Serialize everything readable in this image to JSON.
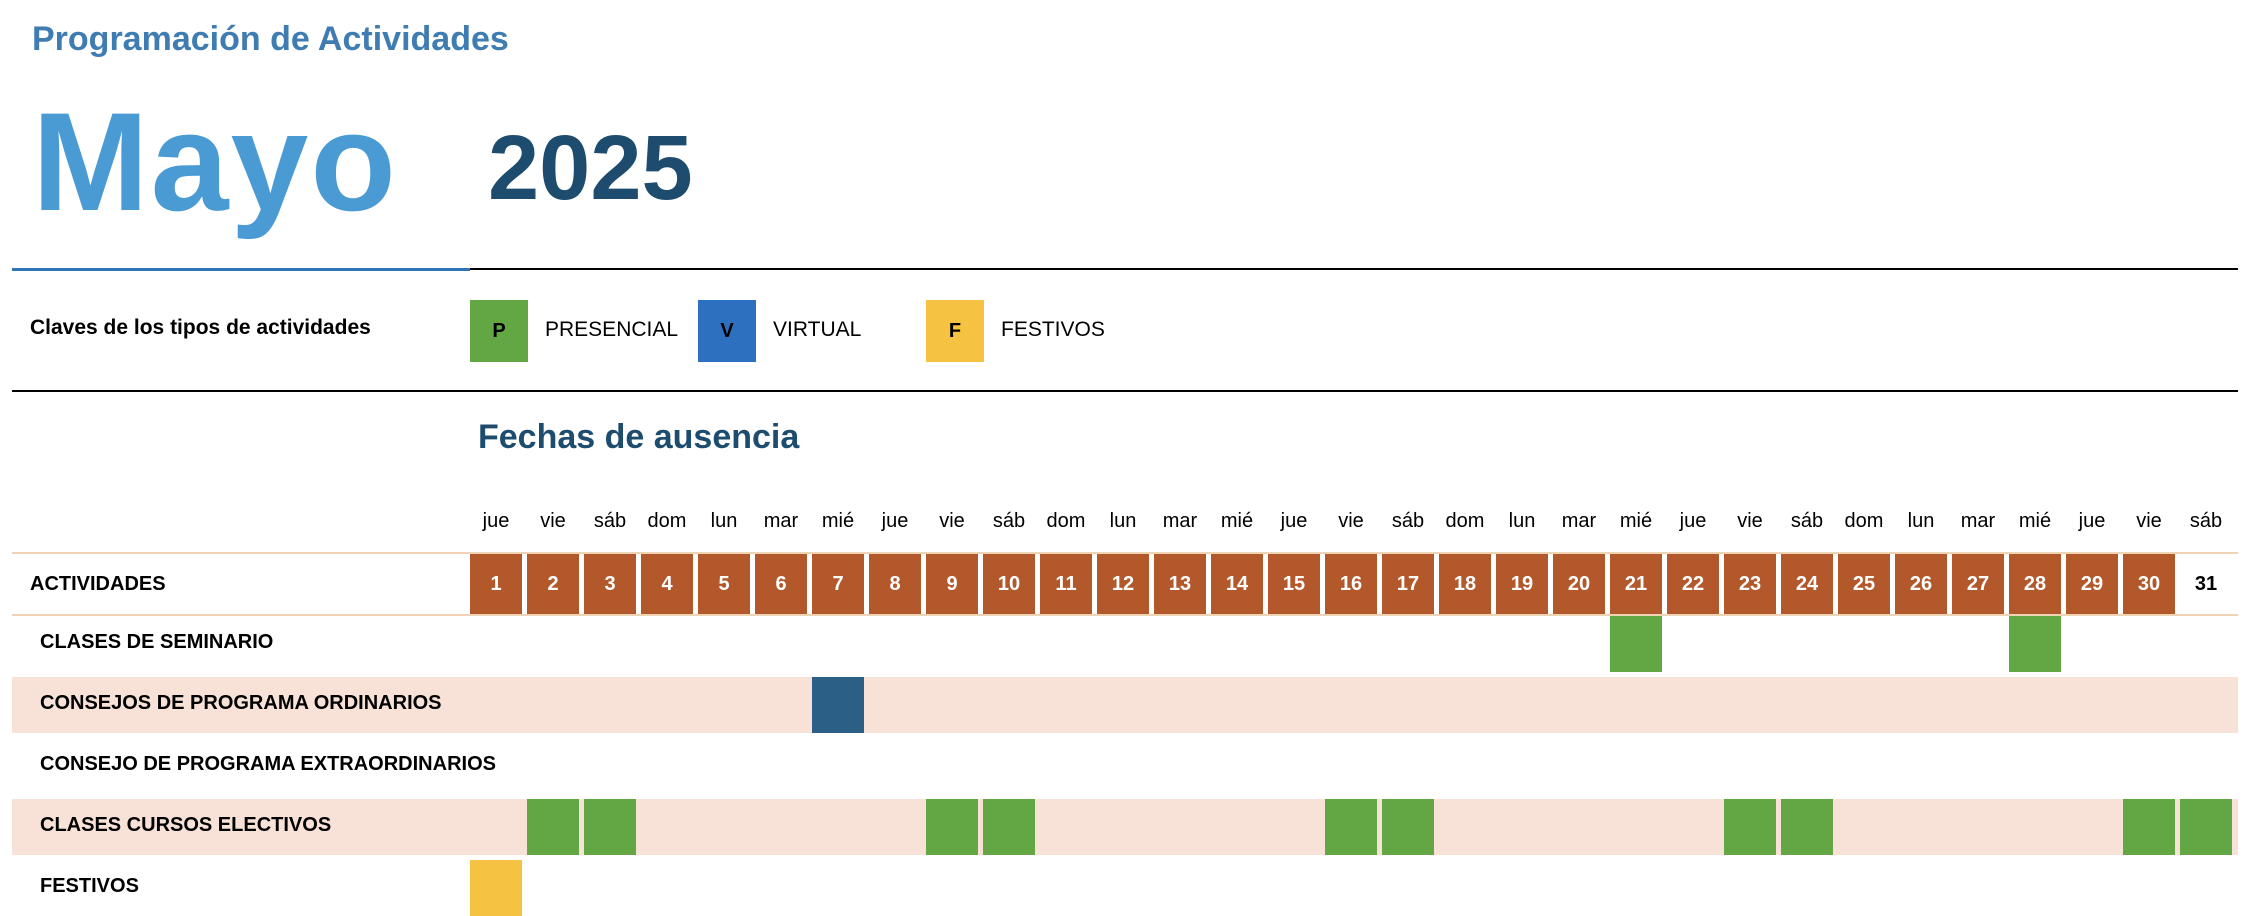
{
  "header": {
    "title": "Programación de Actividades",
    "month": "Mayo",
    "year": "2025"
  },
  "legend": {
    "title": "Claves de los tipos de actividades",
    "items": [
      {
        "key": "P",
        "label": "PRESENCIAL",
        "color": "#62a744",
        "text_color": "#000000"
      },
      {
        "key": "V",
        "label": "VIRTUAL",
        "color": "#2e70c0",
        "text_color": "#000000"
      },
      {
        "key": "F",
        "label": "FESTIVOS",
        "color": "#f5c242",
        "text_color": "#000000"
      }
    ]
  },
  "calendar": {
    "section_title": "Fechas de ausencia",
    "activities_header": "ACTIVIDADES",
    "weekdays": [
      "jue",
      "vie",
      "sáb",
      "dom",
      "lun",
      "mar",
      "mié",
      "jue",
      "vie",
      "sáb",
      "dom",
      "lun",
      "mar",
      "mié",
      "jue",
      "vie",
      "sáb",
      "dom",
      "lun",
      "mar",
      "mié",
      "jue",
      "vie",
      "sáb",
      "dom",
      "lun",
      "mar",
      "mié",
      "jue",
      "vie",
      "sáb"
    ],
    "days": [
      "1",
      "2",
      "3",
      "4",
      "5",
      "6",
      "7",
      "8",
      "9",
      "10",
      "11",
      "12",
      "13",
      "14",
      "15",
      "16",
      "17",
      "18",
      "19",
      "20",
      "21",
      "22",
      "23",
      "24",
      "25",
      "26",
      "27",
      "28",
      "29",
      "30",
      "31"
    ],
    "rows": [
      {
        "label": "CLASES DE SEMINARIO",
        "shaded": false,
        "marks": [
          {
            "day": 21,
            "type": "P"
          },
          {
            "day": 28,
            "type": "P"
          }
        ]
      },
      {
        "label": "CONSEJOS DE PROGRAMA ORDINARIOS",
        "shaded": true,
        "marks": [
          {
            "day": 7,
            "type": "V"
          }
        ]
      },
      {
        "label": "CONSEJO DE PROGRAMA EXTRAORDINARIOS",
        "shaded": false,
        "marks": []
      },
      {
        "label": "CLASES CURSOS ELECTIVOS",
        "shaded": true,
        "marks": [
          {
            "day": 2,
            "type": "P"
          },
          {
            "day": 3,
            "type": "P"
          },
          {
            "day": 9,
            "type": "P"
          },
          {
            "day": 10,
            "type": "P"
          },
          {
            "day": 16,
            "type": "P"
          },
          {
            "day": 17,
            "type": "P"
          },
          {
            "day": 23,
            "type": "P"
          },
          {
            "day": 24,
            "type": "P"
          },
          {
            "day": 30,
            "type": "P"
          },
          {
            "day": 31,
            "type": "P"
          }
        ]
      },
      {
        "label": "FESTIVOS",
        "shaded": false,
        "marks": [
          {
            "day": 1,
            "type": "F"
          }
        ]
      }
    ]
  },
  "colors": {
    "day_header": "#b3582a",
    "virtual_mark": "#2c5f85",
    "presencial_mark": "#62a744",
    "festivo_mark": "#f5c242",
    "band": "#f8e2d8"
  }
}
